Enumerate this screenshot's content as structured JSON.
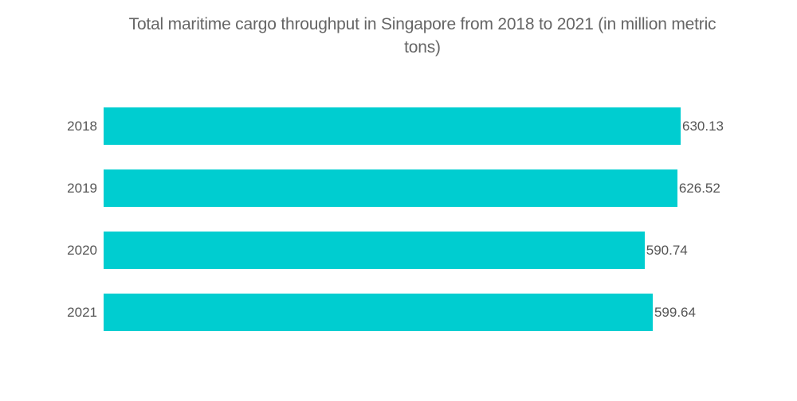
{
  "chart_data": {
    "type": "bar",
    "orientation": "horizontal",
    "title": "Total maritime cargo throughput in Singapore from 2018 to 2021 (in million metric tons)",
    "categories": [
      "2018",
      "2019",
      "2020",
      "2021"
    ],
    "values": [
      630.13,
      626.52,
      590.74,
      599.64
    ],
    "labels": [
      "630.13",
      "626.52",
      "590.74",
      "599.64"
    ],
    "xlabel": "",
    "ylabel": "",
    "xlim": [
      0,
      630.13
    ],
    "grid": false,
    "legend": null,
    "colors": {
      "bar": "#00cdd0",
      "text": "#555555",
      "title": "#666666"
    }
  },
  "title_line1": "Total maritime cargo throughput in Singapore from 2018 to 2021 (in million metric",
  "title_line2": "tons)"
}
